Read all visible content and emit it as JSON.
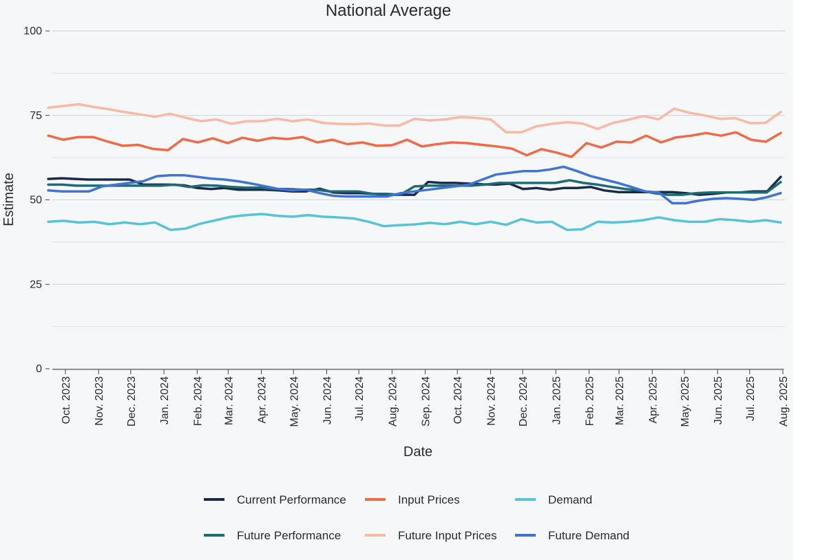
{
  "chart_data": {
    "type": "line",
    "title": "National Average",
    "xlabel": "Date",
    "ylabel": "Estimate",
    "ylim": [
      0,
      100
    ],
    "yticks": [
      0,
      25,
      50,
      75,
      100
    ],
    "grid": true,
    "legend_position": "bottom",
    "x_start": "2023-09-15",
    "x_step_days": 14,
    "xticks": [
      {
        "label": "Oct. 2023",
        "date": "2023-10-01"
      },
      {
        "label": "Nov. 2023",
        "date": "2023-11-01"
      },
      {
        "label": "Dec. 2023",
        "date": "2023-12-01"
      },
      {
        "label": "Jan. 2024",
        "date": "2024-01-01"
      },
      {
        "label": "Feb. 2024",
        "date": "2024-02-01"
      },
      {
        "label": "Mar. 2024",
        "date": "2024-03-01"
      },
      {
        "label": "Apr. 2024",
        "date": "2024-04-01"
      },
      {
        "label": "May. 2024",
        "date": "2024-05-01"
      },
      {
        "label": "Jun. 2024",
        "date": "2024-06-01"
      },
      {
        "label": "Jul. 2024",
        "date": "2024-07-01"
      },
      {
        "label": "Aug. 2024",
        "date": "2024-08-01"
      },
      {
        "label": "Sep. 2024",
        "date": "2024-09-01"
      },
      {
        "label": "Oct. 2024",
        "date": "2024-10-01"
      },
      {
        "label": "Nov. 2024",
        "date": "2024-11-01"
      },
      {
        "label": "Dec. 2024",
        "date": "2024-12-01"
      },
      {
        "label": "Jan. 2025",
        "date": "2025-01-01"
      },
      {
        "label": "Feb. 2025",
        "date": "2025-02-01"
      },
      {
        "label": "Mar. 2025",
        "date": "2025-03-01"
      },
      {
        "label": "Apr. 2025",
        "date": "2025-04-01"
      },
      {
        "label": "May. 2025",
        "date": "2025-05-01"
      },
      {
        "label": "Jun. 2025",
        "date": "2025-06-01"
      },
      {
        "label": "Jul. 2025",
        "date": "2025-07-01"
      },
      {
        "label": "Aug. 2025",
        "date": "2025-08-01"
      }
    ],
    "series": [
      {
        "name": "Current Performance",
        "color": "#1a2a4a",
        "values": [
          56.2,
          56.4,
          56.2,
          56,
          56,
          56,
          56,
          54.5,
          54.5,
          54.5,
          54.3,
          53.5,
          53.2,
          53.5,
          53,
          53,
          53,
          52.8,
          52.5,
          52.5,
          53.3,
          52.2,
          52,
          52,
          51.8,
          51.5,
          51.5,
          51.5,
          55.3,
          55,
          55,
          54.8,
          54.6,
          54.5,
          54.8,
          53.2,
          53.5,
          53,
          53.5,
          53.5,
          53.8,
          52.8,
          52.3,
          52.3,
          52.3,
          52.3,
          52.3,
          52,
          51.5,
          51.8,
          52.2,
          52.2,
          52.5,
          52.5,
          56.8
        ]
      },
      {
        "name": "Input Prices",
        "color": "#ef6b47",
        "values": [
          69,
          67.8,
          68.6,
          68.6,
          67.2,
          66,
          66.3,
          65.1,
          64.7,
          68,
          67,
          68.2,
          66.8,
          68.4,
          67.5,
          68.4,
          68,
          68.6,
          67,
          67.8,
          66.5,
          67,
          66,
          66.2,
          67.8,
          65.8,
          66.5,
          67,
          66.8,
          66.3,
          65.8,
          65.2,
          63.2,
          65,
          64,
          62.7,
          66.8,
          65.5,
          67.2,
          67,
          69,
          67,
          68.5,
          69,
          69.8,
          69,
          70,
          67.8,
          67.2,
          69.8
        ]
      },
      {
        "name": "Demand",
        "color": "#57c3d8",
        "values": [
          43.5,
          43.8,
          43.3,
          43.5,
          42.8,
          43.3,
          42.8,
          43.3,
          41.1,
          41.5,
          43,
          44,
          45,
          45.5,
          45.8,
          45.3,
          45,
          45.5,
          45,
          44.8,
          44.5,
          43.5,
          42.2,
          42.5,
          42.7,
          43.2,
          42.8,
          43.5,
          42.8,
          43.5,
          42.6,
          44.3,
          43.3,
          43.5,
          41.1,
          41.3,
          43.5,
          43.3,
          43.5,
          44,
          44.8,
          44,
          43.5,
          43.5,
          44.3,
          44,
          43.5,
          44,
          43.3
        ]
      },
      {
        "name": "Future Performance",
        "color": "#1e6b75",
        "values": [
          54.5,
          54.5,
          54.2,
          54.2,
          54.2,
          54.2,
          54.2,
          54.2,
          54.2,
          54.5,
          53.8,
          54.3,
          54.2,
          53.8,
          53.6,
          53.6,
          53.2,
          53.2,
          53,
          53,
          52.5,
          52.5,
          52.5,
          51.8,
          51.8,
          51.5,
          54,
          54.2,
          54.2,
          54.2,
          54.2,
          54.5,
          55,
          55,
          55,
          55,
          55,
          55.8,
          55,
          54.5,
          53.8,
          53.2,
          52.8,
          52,
          51.5,
          51.5,
          52,
          52.2,
          52.2,
          52.2,
          52.2,
          52.2,
          55.3
        ]
      },
      {
        "name": "Future Input Prices",
        "color": "#f9b9a5",
        "values": [
          77.3,
          77.8,
          78.3,
          77.5,
          76.8,
          76,
          75.3,
          74.6,
          75.5,
          74.3,
          73.3,
          73.8,
          72.5,
          73.3,
          73.3,
          74,
          73.3,
          73.8,
          72.8,
          72.5,
          72.4,
          72.6,
          72,
          72,
          74,
          73.5,
          73.8,
          74.5,
          74.3,
          73.8,
          70,
          70,
          71.8,
          72.5,
          73,
          72.6,
          71,
          72.8,
          73.7,
          74.8,
          73.8,
          77,
          75.8,
          75,
          74,
          74.2,
          72.7,
          72.8,
          76
        ]
      },
      {
        "name": "Future Demand",
        "color": "#3f74d4",
        "values": [
          52.8,
          52.5,
          52.5,
          52.5,
          54,
          54.5,
          55,
          55.5,
          57,
          57.3,
          57.3,
          56.8,
          56.3,
          56,
          55.5,
          54.8,
          54,
          53.2,
          52.8,
          53,
          52,
          51.2,
          51,
          51,
          51,
          51,
          52,
          52.5,
          53,
          53.5,
          54,
          54.5,
          56,
          57.5,
          58,
          58.5,
          58.5,
          59,
          59.8,
          58.5,
          57,
          56,
          55,
          53.8,
          52.5,
          52.2,
          49,
          49,
          49.8,
          50.3,
          50.5,
          50.3,
          50,
          50.8,
          52
        ]
      }
    ]
  }
}
